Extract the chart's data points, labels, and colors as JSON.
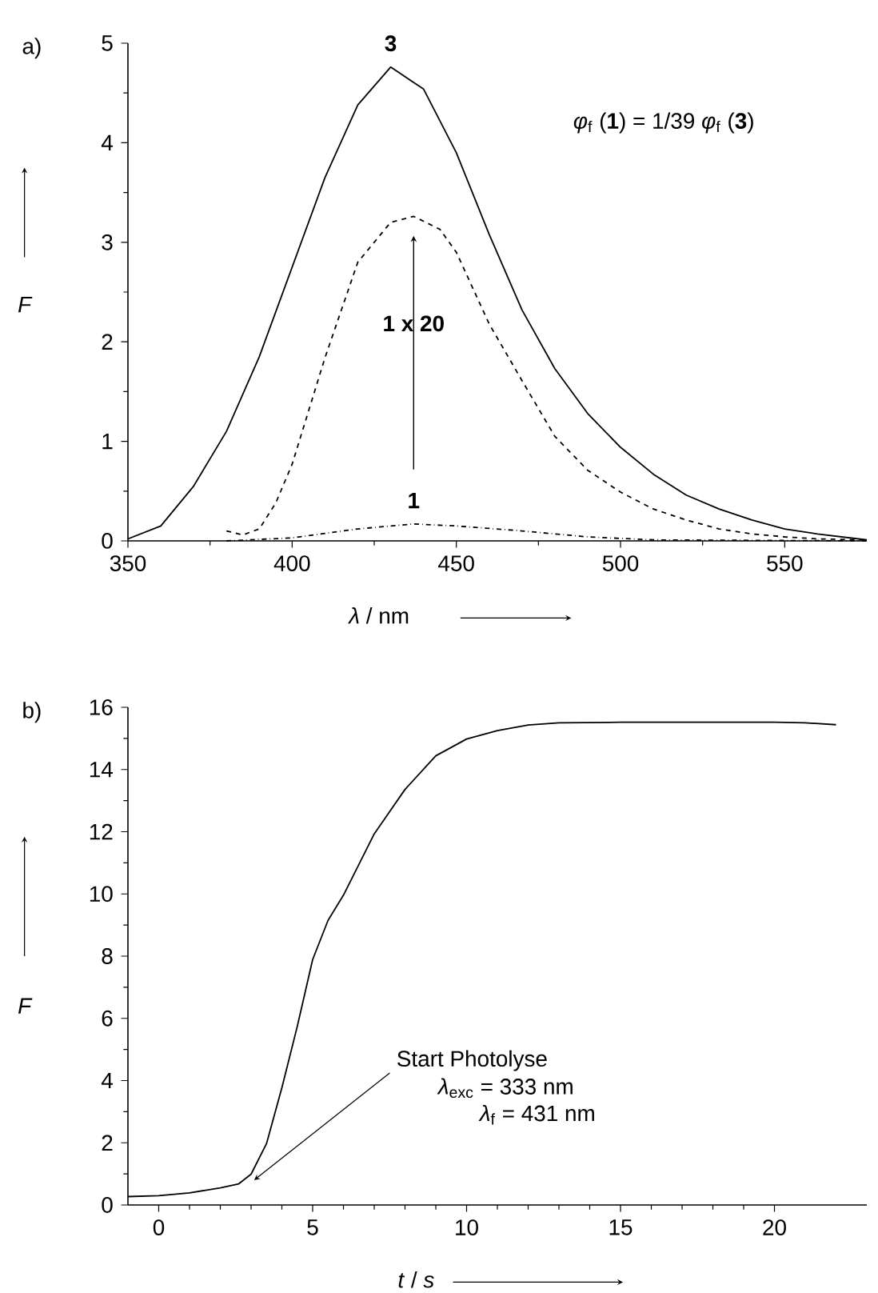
{
  "chart_data": [
    {
      "type": "line",
      "title": "a)",
      "xlabel": "*λ* / nm",
      "ylabel": "F",
      "xlim": [
        350,
        575
      ],
      "xticks": [
        350,
        400,
        450,
        500,
        550
      ],
      "ylim": [
        0,
        5
      ],
      "yticks": [
        0,
        1,
        2,
        3,
        4,
        5
      ],
      "x": [
        350,
        360,
        370,
        380,
        390,
        400,
        410,
        420,
        430,
        440,
        450,
        460,
        470,
        480,
        490,
        500,
        510,
        520,
        530,
        540,
        550,
        560,
        575
      ],
      "series": [
        {
          "name": "3",
          "color": "#000000",
          "line_style": "solid",
          "values": [
            0.02,
            0.15,
            0.55,
            1.1,
            1.85,
            2.75,
            3.65,
            4.38,
            4.76,
            4.54,
            3.9,
            3.08,
            2.32,
            1.73,
            1.28,
            0.94,
            0.67,
            0.46,
            0.32,
            0.21,
            0.12,
            0.07,
            0.01
          ]
        },
        {
          "name": "1 x 20",
          "color": "#000000",
          "line_style": "dashed",
          "x": [
            380,
            385,
            390,
            395,
            400,
            410,
            420,
            430,
            437,
            445,
            450,
            460,
            470,
            480,
            490,
            500,
            510,
            520,
            530,
            540,
            550,
            560,
            575
          ],
          "values": [
            0.1,
            0.06,
            0.12,
            0.38,
            0.77,
            1.84,
            2.8,
            3.2,
            3.26,
            3.13,
            2.9,
            2.18,
            1.61,
            1.05,
            0.71,
            0.49,
            0.32,
            0.21,
            0.12,
            0.07,
            0.04,
            0.02,
            0.01
          ]
        },
        {
          "name": "1",
          "color": "#000000",
          "line_style": "dashdot",
          "x": [
            380,
            400,
            420,
            437,
            450,
            470,
            490,
            510,
            575
          ],
          "values": [
            0.0,
            0.03,
            0.12,
            0.17,
            0.15,
            0.1,
            0.04,
            0.01,
            0.0
          ]
        }
      ],
      "annotations": [
        "*φ*$_{f}$ (**1**) = 1/39 *φ*$_{f}$ (**3**)"
      ]
    },
    {
      "type": "line",
      "title": "b)",
      "xlabel": "*t* / *s*",
      "ylabel": "F",
      "xlim": [
        -1,
        23
      ],
      "xticks": [
        0,
        5,
        10,
        15,
        20
      ],
      "ylim": [
        0,
        16
      ],
      "yticks": [
        0,
        2,
        4,
        6,
        8,
        10,
        12,
        14,
        16
      ],
      "x": [
        -1,
        0,
        1,
        2,
        2.6,
        3,
        3.5,
        4,
        4.5,
        5,
        5.5,
        6,
        7,
        8,
        9,
        10,
        11,
        12,
        13,
        15,
        18,
        20,
        21,
        22
      ],
      "series": [
        {
          "color": "#000000",
          "line_style": "solid",
          "values": [
            0.27,
            0.3,
            0.39,
            0.55,
            0.68,
            0.99,
            1.97,
            3.77,
            5.74,
            7.89,
            9.15,
            9.96,
            11.93,
            13.36,
            14.44,
            14.98,
            15.25,
            15.43,
            15.5,
            15.52,
            15.52,
            15.52,
            15.5,
            15.44
          ]
        }
      ],
      "annotations": [
        {
          "text": "Start Photolyse",
          "x": 3.1,
          "y": 0.8
        },
        "*λ*$_{exc}$ = 333 nm",
        "*λ*$_{f}$ = 431 nm"
      ]
    }
  ]
}
